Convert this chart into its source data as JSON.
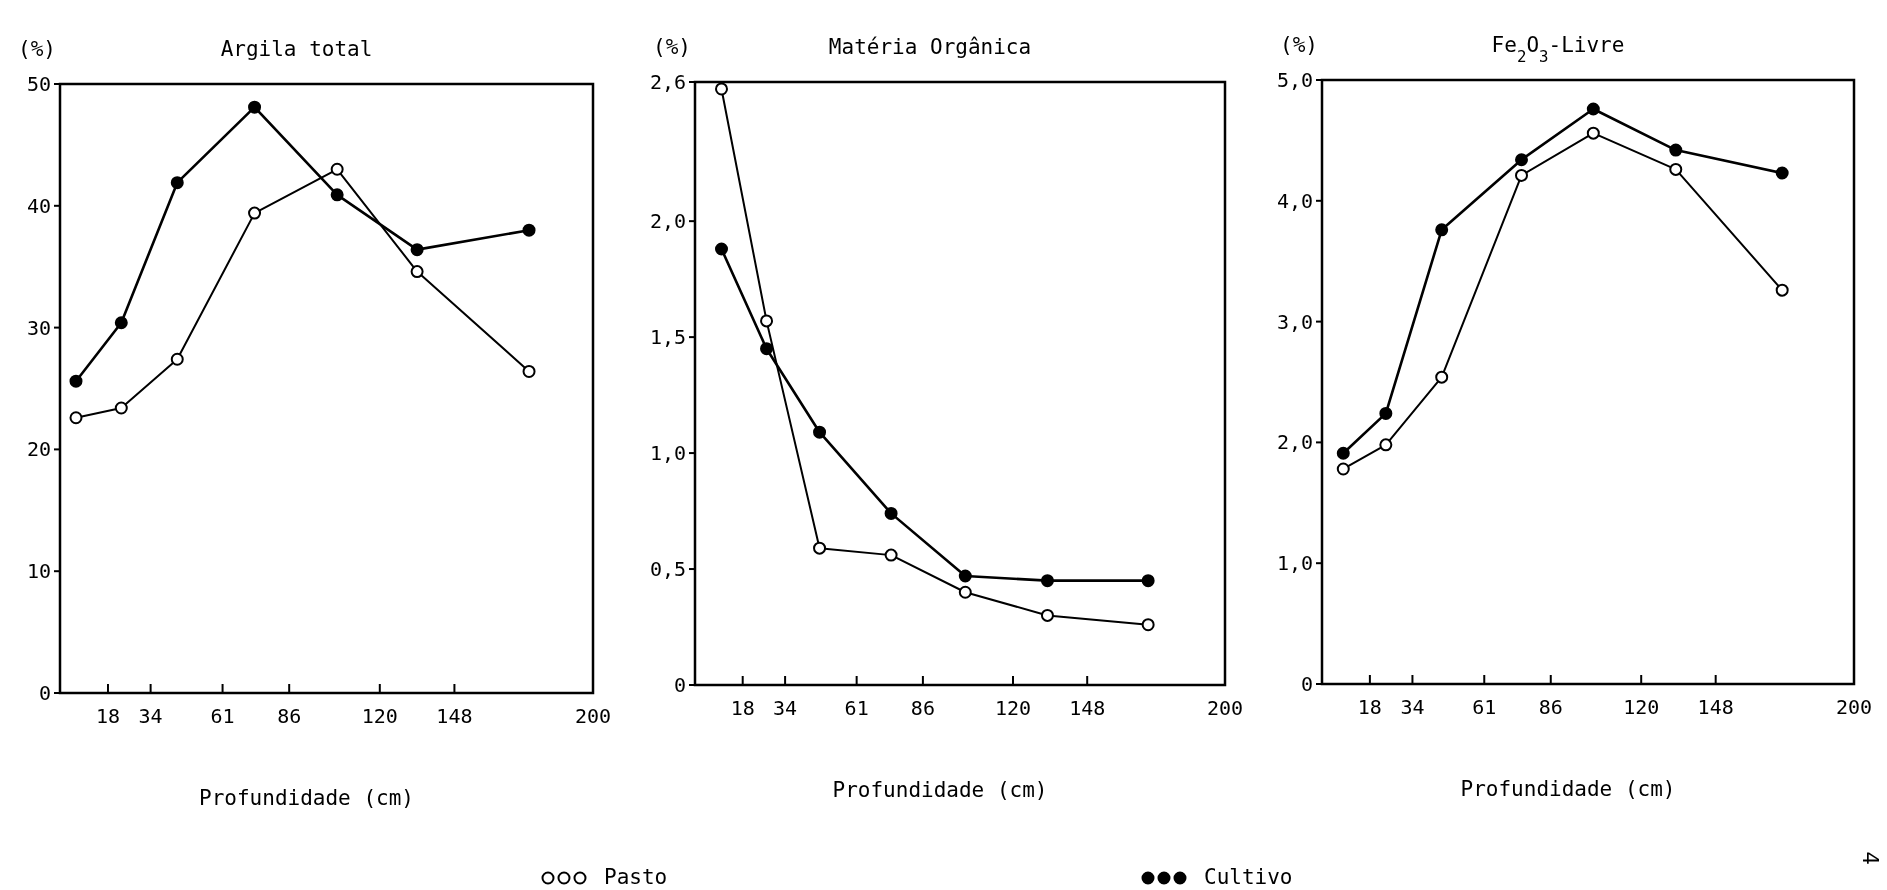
{
  "chart_data": [
    {
      "type": "line",
      "title": "Argila total",
      "ylabel": "(%)",
      "xlabel": "Profundidade (cm)",
      "xlim": [
        0,
        200
      ],
      "xticks": [
        18,
        34,
        61,
        86,
        120,
        148,
        200
      ],
      "ylim": [
        0,
        50
      ],
      "yticks": [
        0,
        10,
        20,
        30,
        40,
        50
      ],
      "x": [
        6,
        23,
        44,
        73,
        104,
        134,
        176
      ],
      "marker": "circle",
      "legend": "bottom",
      "grid": false,
      "series": [
        {
          "name": "Pasto",
          "color": "#000000",
          "values": [
            22.6,
            23.4,
            27.4,
            39.4,
            43.0,
            34.6,
            26.4
          ]
        },
        {
          "name": "Cultivo",
          "color": "#000000",
          "values": [
            25.6,
            30.4,
            41.9,
            48.1,
            40.9,
            36.4,
            38.0
          ]
        }
      ]
    },
    {
      "type": "line",
      "title": "Matéria Orgânica",
      "ylabel": "(%)",
      "xlabel": "Profundidade (cm)",
      "xlim": [
        0,
        200
      ],
      "xticks": [
        18,
        34,
        61,
        86,
        120,
        148,
        200
      ],
      "ylim": [
        0,
        2.6
      ],
      "yticks": [
        0,
        {
          "value": 0.5,
          "label": "0,5"
        },
        {
          "value": 1,
          "label": "1,0"
        },
        {
          "value": 1.5,
          "label": "1,5"
        },
        {
          "value": 2,
          "label": "2,0"
        },
        {
          "value": 2.6,
          "label": "2,6"
        }
      ],
      "x": [
        10,
        27,
        47,
        74,
        102,
        133,
        171
      ],
      "marker": "circle",
      "grid": false,
      "series": [
        {
          "color": "#000000",
          "values": [
            2.57,
            1.57,
            0.59,
            0.56,
            0.4,
            0.3,
            0.26
          ]
        },
        {
          "color": "#000000",
          "values": [
            1.88,
            1.45,
            1.09,
            0.74,
            0.47,
            0.45,
            0.45
          ]
        }
      ]
    },
    {
      "type": "line",
      "title": "Fe$_{2}$O$_{3}$-Livre",
      "ylabel": "(%)",
      "xlabel": "Profundidade (cm)",
      "xlim": [
        0,
        200
      ],
      "xticks": [
        18,
        34,
        61,
        86,
        120,
        148,
        200
      ],
      "ylim": [
        0,
        5
      ],
      "yticks": [
        0,
        {
          "value": 1,
          "label": "1,0"
        },
        {
          "value": 2,
          "label": "2,0"
        },
        {
          "value": 3,
          "label": "3,0"
        },
        {
          "value": 4,
          "label": "4,0"
        },
        {
          "value": 5,
          "label": "5,0"
        }
      ],
      "x": [
        8,
        24,
        45,
        75,
        102,
        133,
        173
      ],
      "marker": "circle",
      "grid": false,
      "annotations": [
        "4"
      ],
      "series": [
        {
          "color": "#000000",
          "values": [
            1.78,
            1.98,
            2.54,
            4.21,
            4.56,
            4.26,
            3.26
          ]
        },
        {
          "color": "#000000",
          "values": [
            1.91,
            2.24,
            3.76,
            4.34,
            4.76,
            4.42,
            4.23
          ]
        }
      ]
    }
  ]
}
